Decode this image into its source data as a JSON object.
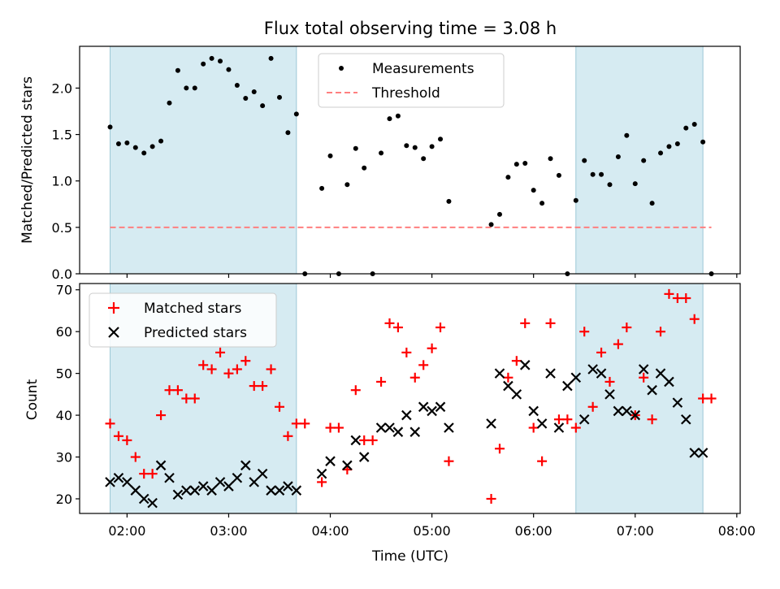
{
  "chart_data": [
    {
      "type": "scatter",
      "title": "Flux total observing time = 3.08 h",
      "ylabel": "Matched/Predicted stars",
      "xlim": [
        "01:32",
        "08:02"
      ],
      "ylim": [
        0,
        2.45
      ],
      "yticks": [
        "0.0",
        "0.5",
        "1.0",
        "1.5",
        "2.0"
      ],
      "shaded_regions": [
        [
          "01:50",
          "03:40"
        ],
        [
          "06:25",
          "07:40"
        ]
      ],
      "threshold": {
        "name": "Threshold",
        "value": 0.5,
        "x_range": [
          "01:50",
          "07:45"
        ],
        "color": "#ff7f7f"
      },
      "legend_position": "upper center",
      "series": [
        {
          "name": "Measurements",
          "color": "#000000",
          "x": [
            "01:50",
            "01:55",
            "02:00",
            "02:05",
            "02:10",
            "02:15",
            "02:20",
            "02:25",
            "02:30",
            "02:35",
            "02:40",
            "02:45",
            "02:50",
            "02:55",
            "03:00",
            "03:05",
            "03:10",
            "03:15",
            "03:20",
            "03:25",
            "03:30",
            "03:35",
            "03:40",
            "03:45",
            "03:55",
            "04:00",
            "04:05",
            "04:10",
            "04:15",
            "04:20",
            "04:25",
            "04:30",
            "04:35",
            "04:40",
            "04:45",
            "04:50",
            "04:55",
            "05:00",
            "05:05",
            "05:10",
            "05:35",
            "05:40",
            "05:45",
            "05:50",
            "05:55",
            "06:00",
            "06:05",
            "06:10",
            "06:15",
            "06:20",
            "06:25",
            "06:30",
            "06:35",
            "06:40",
            "06:45",
            "06:50",
            "06:55",
            "07:00",
            "07:05",
            "07:10",
            "07:15",
            "07:20",
            "07:25",
            "07:30",
            "07:35",
            "07:40",
            "07:45"
          ],
          "y": [
            1.58,
            1.4,
            1.41,
            1.36,
            1.3,
            1.37,
            1.43,
            1.84,
            2.19,
            2.0,
            2.0,
            2.26,
            2.32,
            2.29,
            2.2,
            2.03,
            1.89,
            1.96,
            1.81,
            2.32,
            1.9,
            1.52,
            1.72,
            0.0,
            0.92,
            1.27,
            0.0,
            0.96,
            1.35,
            1.14,
            0.0,
            1.3,
            1.67,
            1.7,
            1.38,
            1.36,
            1.24,
            1.37,
            1.45,
            0.78,
            0.53,
            0.64,
            1.04,
            1.18,
            1.19,
            0.9,
            0.76,
            1.24,
            1.06,
            0.0,
            0.79,
            1.22,
            1.07,
            1.07,
            0.96,
            1.26,
            1.49,
            0.97,
            1.22,
            0.76,
            1.3,
            1.37,
            1.4,
            1.57,
            1.61,
            1.42,
            0.0
          ]
        }
      ]
    },
    {
      "type": "scatter",
      "xlabel": "Time (UTC)",
      "ylabel": "Count",
      "xlim": [
        "01:32",
        "08:02"
      ],
      "ylim": [
        16.5,
        71.5
      ],
      "xticks": [
        "02:00",
        "03:00",
        "04:00",
        "05:00",
        "06:00",
        "07:00",
        "08:00"
      ],
      "yticks": [
        "20",
        "30",
        "40",
        "50",
        "60",
        "70"
      ],
      "shaded_regions": [
        [
          "01:50",
          "03:40"
        ],
        [
          "06:25",
          "07:40"
        ]
      ],
      "legend_position": "upper left",
      "series": [
        {
          "name": "Matched stars",
          "marker": "plus",
          "color": "#ff0000",
          "x": [
            "01:50",
            "01:55",
            "02:00",
            "02:05",
            "02:10",
            "02:15",
            "02:20",
            "02:25",
            "02:30",
            "02:35",
            "02:40",
            "02:45",
            "02:50",
            "02:55",
            "03:00",
            "03:05",
            "03:10",
            "03:15",
            "03:20",
            "03:25",
            "03:30",
            "03:35",
            "03:40",
            "03:45",
            "03:55",
            "04:00",
            "04:05",
            "04:10",
            "04:15",
            "04:20",
            "04:25",
            "04:30",
            "04:35",
            "04:40",
            "04:45",
            "04:50",
            "04:55",
            "05:00",
            "05:05",
            "05:10",
            "05:35",
            "05:40",
            "05:45",
            "05:50",
            "05:55",
            "06:00",
            "06:05",
            "06:10",
            "06:15",
            "06:20",
            "06:25",
            "06:30",
            "06:35",
            "06:40",
            "06:45",
            "06:50",
            "06:55",
            "07:00",
            "07:05",
            "07:10",
            "07:15",
            "07:20",
            "07:25",
            "07:30",
            "07:35",
            "07:40",
            "07:45"
          ],
          "y": [
            38,
            35,
            34,
            30,
            26,
            26,
            40,
            46,
            46,
            44,
            44,
            52,
            51,
            55,
            50,
            51,
            53,
            47,
            47,
            51,
            42,
            35,
            38,
            38,
            24,
            37,
            37,
            27,
            46,
            34,
            34,
            48,
            62,
            61,
            55,
            49,
            52,
            56,
            61,
            29,
            20,
            32,
            49,
            53,
            62,
            37,
            29,
            62,
            39,
            39,
            37,
            60,
            42,
            55,
            48,
            57,
            61,
            40,
            49,
            39,
            60,
            69,
            68,
            68,
            63,
            44,
            44
          ]
        },
        {
          "name": "Predicted stars",
          "marker": "x",
          "color": "#000000",
          "x": [
            "01:50",
            "01:55",
            "02:00",
            "02:05",
            "02:10",
            "02:15",
            "02:20",
            "02:25",
            "02:30",
            "02:35",
            "02:40",
            "02:45",
            "02:50",
            "02:55",
            "03:00",
            "03:05",
            "03:10",
            "03:15",
            "03:20",
            "03:25",
            "03:30",
            "03:35",
            "03:40",
            "03:55",
            "04:00",
            "04:10",
            "04:15",
            "04:20",
            "04:30",
            "04:35",
            "04:40",
            "04:45",
            "04:50",
            "04:55",
            "05:00",
            "05:05",
            "05:10",
            "05:35",
            "05:40",
            "05:45",
            "05:50",
            "05:55",
            "06:00",
            "06:05",
            "06:10",
            "06:15",
            "06:20",
            "06:25",
            "06:30",
            "06:35",
            "06:40",
            "06:45",
            "06:50",
            "06:55",
            "07:00",
            "07:05",
            "07:10",
            "07:15",
            "07:20",
            "07:25",
            "07:30",
            "07:35",
            "07:40"
          ],
          "y": [
            24,
            25,
            24,
            22,
            20,
            19,
            28,
            25,
            21,
            22,
            22,
            23,
            22,
            24,
            23,
            25,
            28,
            24,
            26,
            22,
            22,
            23,
            22,
            26,
            29,
            28,
            34,
            30,
            37,
            37,
            36,
            40,
            36,
            42,
            41,
            42,
            37,
            38,
            50,
            47,
            45,
            52,
            41,
            38,
            50,
            37,
            47,
            49,
            39,
            51,
            50,
            45,
            41,
            41,
            40,
            51,
            46,
            50,
            48,
            43,
            39,
            31,
            31
          ]
        }
      ]
    }
  ]
}
